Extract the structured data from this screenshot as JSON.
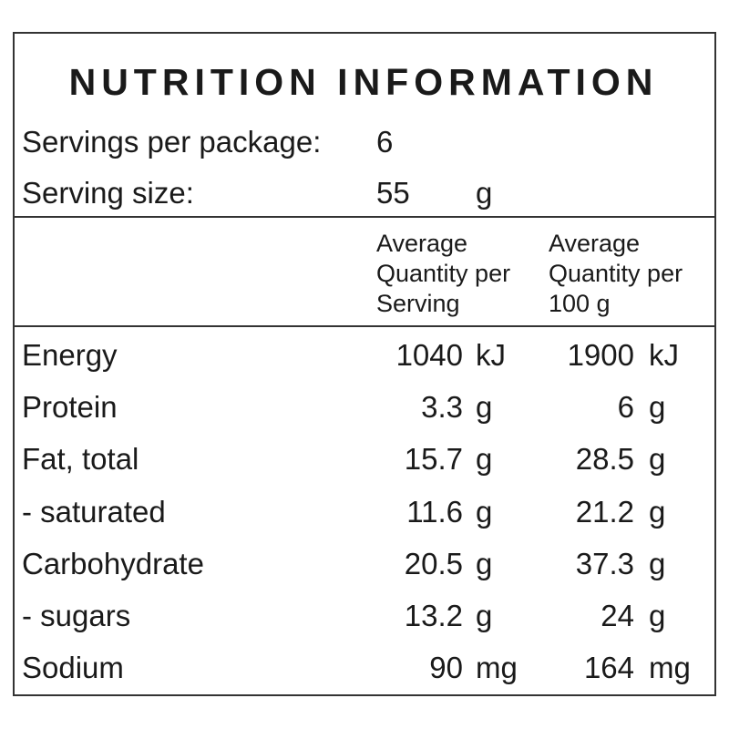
{
  "title": "NUTRITION INFORMATION",
  "servings": {
    "label": "Servings per package:",
    "value": 6
  },
  "serving_size": {
    "label": "Serving size:",
    "value": 55,
    "unit": "g"
  },
  "columns": [
    {
      "lines": [
        "Average",
        "Quantity per",
        "Serving"
      ]
    },
    {
      "lines": [
        "Average",
        "Quantity per",
        "100 g"
      ]
    }
  ],
  "rows": [
    {
      "name": "Energy",
      "per_serving": 1040,
      "per_serving_unit": "kJ",
      "per_100g": 1900,
      "per_100g_unit": "kJ"
    },
    {
      "name": "Protein",
      "per_serving": 3.3,
      "per_serving_unit": "g",
      "per_100g": 6,
      "per_100g_unit": "g"
    },
    {
      "name": "Fat, total",
      "per_serving": 15.7,
      "per_serving_unit": "g",
      "per_100g": 28.5,
      "per_100g_unit": "g"
    },
    {
      "name": "- saturated",
      "per_serving": 11.6,
      "per_serving_unit": "g",
      "per_100g": 21.2,
      "per_100g_unit": "g"
    },
    {
      "name": "Carbohydrate",
      "per_serving": 20.5,
      "per_serving_unit": "g",
      "per_100g": 37.3,
      "per_100g_unit": "g"
    },
    {
      "name": "- sugars",
      "per_serving": 13.2,
      "per_serving_unit": "g",
      "per_100g": 24,
      "per_100g_unit": "g"
    },
    {
      "name": "Sodium",
      "per_serving": 90,
      "per_serving_unit": "mg",
      "per_100g": 164,
      "per_100g_unit": "mg"
    }
  ]
}
